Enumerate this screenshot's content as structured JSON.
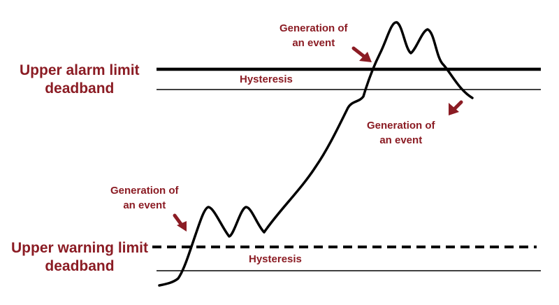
{
  "labels": {
    "upper_alarm": {
      "line1": "Upper alarm limit",
      "line2": "deadband"
    },
    "upper_warning": {
      "line1": "Upper warning limit",
      "line2": "deadband"
    },
    "hysteresis_alarm": "Hysteresis",
    "hysteresis_warning": "Hysteresis",
    "events": [
      {
        "line1": "Generation of",
        "line2": "an event"
      },
      {
        "line1": "Generation of",
        "line2": "an event"
      },
      {
        "line1": "Generation of",
        "line2": "an event"
      }
    ]
  },
  "colors": {
    "label": "#8b1c24",
    "arrow": "#8b1c24",
    "line": "#000000"
  },
  "lines": {
    "alarm_limit": "solid-thick",
    "alarm_hysteresis": "solid-thin",
    "warning_limit": "dashed-thick",
    "warning_hysteresis": "solid-thin"
  }
}
